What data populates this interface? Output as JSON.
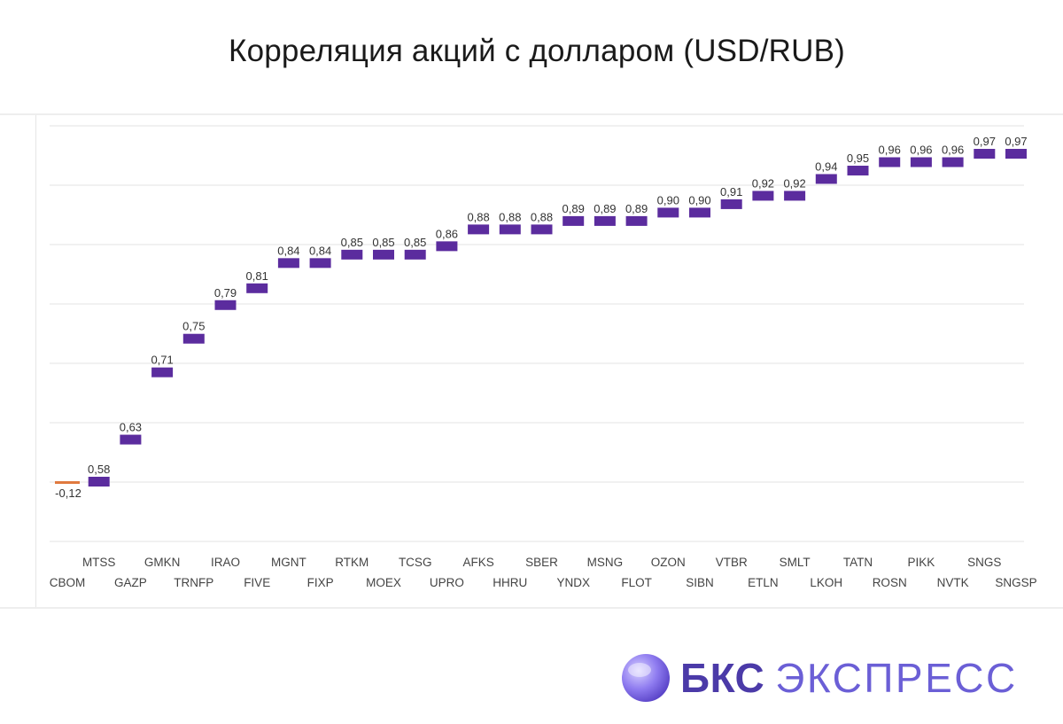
{
  "title": "Корреляция акций с долларом (USD/RUB)",
  "colors": {
    "positive": "#5b2c9e",
    "negative": "#e07a3f",
    "grid": "#e3e3e3"
  },
  "brand": {
    "name_bold": "БКС",
    "name_light": "ЭКСПРЕСС"
  },
  "chart_data": {
    "type": "bar",
    "subtype": "waterfall-floating",
    "title": "Корреляция акций с долларом (USD/RUB)",
    "xlabel": "",
    "ylabel": "",
    "grid": true,
    "legend": "none",
    "categories": [
      "CBOM",
      "MTSS",
      "GAZP",
      "GMKN",
      "TRNFP",
      "IRAO",
      "FIVE",
      "MGNT",
      "FIXP",
      "RTKM",
      "MOEX",
      "TCSG",
      "UPRO",
      "AFKS",
      "HHRU",
      "SBER",
      "YNDX",
      "MSNG",
      "FLOT",
      "OZON",
      "SIBN",
      "VTBR",
      "ETLN",
      "SMLT",
      "LKOH",
      "TATN",
      "ROSN",
      "PIKK",
      "NVTK",
      "SNGS",
      "SNGSP"
    ],
    "values": [
      -0.12,
      0.58,
      0.63,
      0.71,
      0.75,
      0.79,
      0.81,
      0.84,
      0.84,
      0.85,
      0.85,
      0.85,
      0.86,
      0.88,
      0.88,
      0.88,
      0.89,
      0.89,
      0.89,
      0.9,
      0.9,
      0.91,
      0.92,
      0.92,
      0.94,
      0.95,
      0.96,
      0.96,
      0.96,
      0.97,
      0.97
    ],
    "value_labels": [
      "-0,12",
      "0,58",
      "0,63",
      "0,71",
      "0,75",
      "0,79",
      "0,81",
      "0,84",
      "0,84",
      "0,85",
      "0,85",
      "0,85",
      "0,86",
      "0,88",
      "0,88",
      "0,88",
      "0,89",
      "0,89",
      "0,89",
      "0,90",
      "0,90",
      "0,91",
      "0,92",
      "0,92",
      "0,94",
      "0,95",
      "0,96",
      "0,96",
      "0,96",
      "0,97",
      "0,97"
    ]
  }
}
